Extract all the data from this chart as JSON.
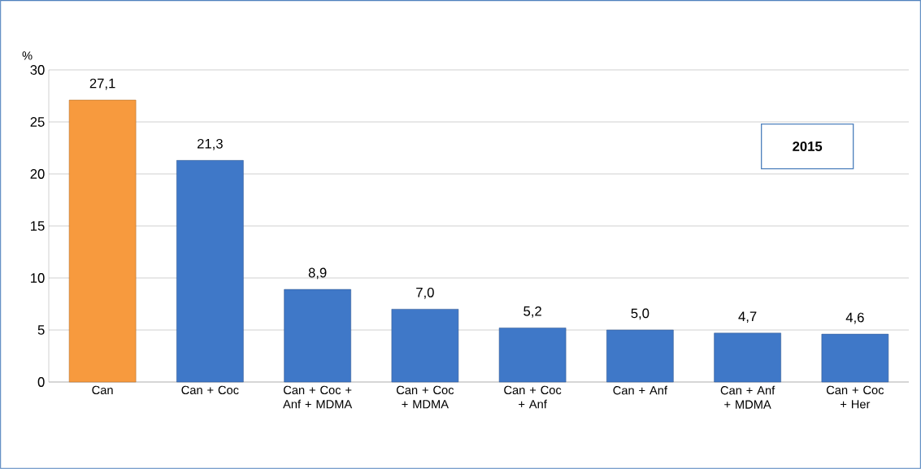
{
  "chart_data": {
    "type": "bar",
    "ylabel": "%",
    "categories": [
      "Can",
      "Can + Coc",
      "Can + Coc + Anf + MDMA",
      "Can + Coc + MDMA",
      "Can + Coc + Anf",
      "Can + Anf",
      "Can + Anf + MDMA",
      "Can + Coc + Her"
    ],
    "values": [
      27.1,
      21.3,
      8.9,
      7.0,
      5.2,
      5.0,
      4.7,
      4.6
    ],
    "value_labels": [
      "27,1",
      "21,3",
      "8,9",
      "7,0",
      "5,2",
      "5,0",
      "4,7",
      "4,6"
    ],
    "colors": [
      "#f79a3e",
      "#3f78c8",
      "#3f78c8",
      "#3f78c8",
      "#3f78c8",
      "#3f78c8",
      "#3f78c8",
      "#3f78c8"
    ],
    "ylim": [
      0,
      30
    ],
    "yticks": [
      0,
      5,
      10,
      15,
      20,
      25,
      30
    ],
    "grid": "y",
    "annotations": [
      "**2015**"
    ]
  }
}
